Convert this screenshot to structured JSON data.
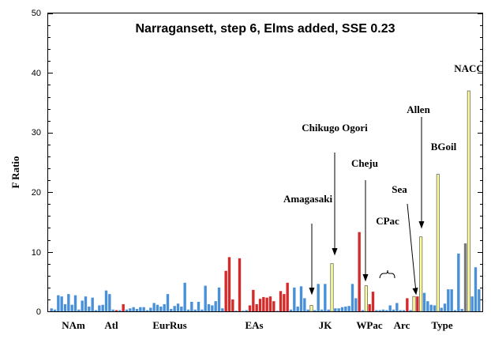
{
  "chart_data": {
    "type": "bar",
    "title": "Narragansett, step 6, Elms added, SSE 0.23",
    "ylabel": "F Ratio",
    "ylim": [
      0,
      50
    ],
    "yticks": [
      0,
      10,
      20,
      30,
      40,
      50
    ],
    "colors": {
      "blue": "#4a90d9",
      "red": "#d42a2a",
      "yellow": "#ffff99",
      "dark": "#7a7a7a"
    },
    "groups": [
      "NAm",
      "Atl",
      "EurRus",
      "EAs",
      "JK",
      "WPac",
      "Arc",
      "Type"
    ],
    "annotations": [
      "Amagasaki",
      "Chikugo Ogori",
      "Cheju",
      "CPac",
      "Sea",
      "Allen",
      "BGoil",
      "NACC"
    ],
    "series": [
      {
        "c": "blue",
        "v": 0.5
      },
      {
        "c": "blue",
        "v": 0.3
      },
      {
        "c": "blue",
        "v": 2.7
      },
      {
        "c": "blue",
        "v": 2.5
      },
      {
        "c": "blue",
        "v": 1.2
      },
      {
        "c": "blue",
        "v": 2.9
      },
      {
        "c": "blue",
        "v": 1.1
      },
      {
        "c": "blue",
        "v": 2.7
      },
      {
        "c": "blue",
        "v": 0.3
      },
      {
        "c": "blue",
        "v": 1.8
      },
      {
        "c": "blue",
        "v": 2.5
      },
      {
        "c": "blue",
        "v": 0.8
      },
      {
        "c": "blue",
        "v": 2.3
      },
      {
        "c": "blue",
        "v": 0.2
      },
      {
        "c": "blue",
        "v": 1.0
      },
      {
        "c": "blue",
        "v": 1.1
      },
      {
        "c": "blue",
        "v": 3.5
      },
      {
        "c": "blue",
        "v": 2.9
      },
      {
        "c": "blue",
        "v": 0.3
      },
      {
        "c": "red",
        "v": 0.2
      },
      {
        "c": "blue",
        "v": 0.2
      },
      {
        "c": "red",
        "v": 1.2
      },
      {
        "c": "blue",
        "v": 0.3
      },
      {
        "c": "blue",
        "v": 0.5
      },
      {
        "c": "blue",
        "v": 0.7
      },
      {
        "c": "blue",
        "v": 0.4
      },
      {
        "c": "blue",
        "v": 0.7
      },
      {
        "c": "blue",
        "v": 0.7
      },
      {
        "c": "blue",
        "v": 0.2
      },
      {
        "c": "blue",
        "v": 0.6
      },
      {
        "c": "blue",
        "v": 1.4
      },
      {
        "c": "blue",
        "v": 1.1
      },
      {
        "c": "blue",
        "v": 0.8
      },
      {
        "c": "blue",
        "v": 1.2
      },
      {
        "c": "blue",
        "v": 2.9
      },
      {
        "c": "blue",
        "v": 0.4
      },
      {
        "c": "blue",
        "v": 0.9
      },
      {
        "c": "blue",
        "v": 1.3
      },
      {
        "c": "blue",
        "v": 0.8
      },
      {
        "c": "blue",
        "v": 4.8
      },
      {
        "c": "blue",
        "v": 0.3
      },
      {
        "c": "blue",
        "v": 1.6
      },
      {
        "c": "blue",
        "v": 0.3
      },
      {
        "c": "blue",
        "v": 1.6
      },
      {
        "c": "blue",
        "v": 0.3
      },
      {
        "c": "blue",
        "v": 4.3
      },
      {
        "c": "blue",
        "v": 1.2
      },
      {
        "c": "blue",
        "v": 1.0
      },
      {
        "c": "blue",
        "v": 1.7
      },
      {
        "c": "blue",
        "v": 4.0
      },
      {
        "c": "blue",
        "v": 0.5
      },
      {
        "c": "red",
        "v": 6.8
      },
      {
        "c": "red",
        "v": 9.1
      },
      {
        "c": "red",
        "v": 2.0
      },
      {
        "c": "blue",
        "v": 0.1
      },
      {
        "c": "red",
        "v": 8.9
      },
      {
        "c": "blue",
        "v": 0.1
      },
      {
        "c": "blue",
        "v": 0.2
      },
      {
        "c": "red",
        "v": 1.0
      },
      {
        "c": "red",
        "v": 3.6
      },
      {
        "c": "red",
        "v": 1.2
      },
      {
        "c": "red",
        "v": 2.1
      },
      {
        "c": "red",
        "v": 2.4
      },
      {
        "c": "red",
        "v": 2.3
      },
      {
        "c": "red",
        "v": 2.5
      },
      {
        "c": "red",
        "v": 1.7
      },
      {
        "c": "blue",
        "v": 0.1
      },
      {
        "c": "red",
        "v": 3.4
      },
      {
        "c": "red",
        "v": 2.9
      },
      {
        "c": "red",
        "v": 4.8
      },
      {
        "c": "blue",
        "v": 0.3
      },
      {
        "c": "blue",
        "v": 4.0
      },
      {
        "c": "blue",
        "v": 0.8
      },
      {
        "c": "blue",
        "v": 4.2
      },
      {
        "c": "blue",
        "v": 2.2
      },
      {
        "c": "blue",
        "v": 0.3
      },
      {
        "c": "yellow",
        "v": 1.0
      },
      {
        "c": "blue",
        "v": 0.2
      },
      {
        "c": "blue",
        "v": 4.6
      },
      {
        "c": "blue",
        "v": 0.3
      },
      {
        "c": "blue",
        "v": 4.6
      },
      {
        "c": "blue",
        "v": 0.3
      },
      {
        "c": "yellow",
        "v": 8.0
      },
      {
        "c": "blue",
        "v": 0.5
      },
      {
        "c": "blue",
        "v": 0.5
      },
      {
        "c": "blue",
        "v": 0.7
      },
      {
        "c": "blue",
        "v": 0.8
      },
      {
        "c": "blue",
        "v": 0.9
      },
      {
        "c": "blue",
        "v": 4.6
      },
      {
        "c": "blue",
        "v": 2.2
      },
      {
        "c": "red",
        "v": 13.3
      },
      {
        "c": "blue",
        "v": 0.2
      },
      {
        "c": "yellow",
        "v": 4.3
      },
      {
        "c": "red",
        "v": 1.2
      },
      {
        "c": "red",
        "v": 3.3
      },
      {
        "c": "blue",
        "v": 0.2
      },
      {
        "c": "blue",
        "v": 0.2
      },
      {
        "c": "blue",
        "v": 0.3
      },
      {
        "c": "blue",
        "v": 0.2
      },
      {
        "c": "blue",
        "v": 1.0
      },
      {
        "c": "blue",
        "v": 0.3
      },
      {
        "c": "blue",
        "v": 1.4
      },
      {
        "c": "blue",
        "v": 0.2
      },
      {
        "c": "blue",
        "v": 0.2
      },
      {
        "c": "red",
        "v": 2.2
      },
      {
        "c": "blue",
        "v": 0.2
      },
      {
        "c": "yellow",
        "v": 2.5
      },
      {
        "c": "red",
        "v": 2.5
      },
      {
        "c": "yellow",
        "v": 12.5
      },
      {
        "c": "blue",
        "v": 3.1
      },
      {
        "c": "blue",
        "v": 1.7
      },
      {
        "c": "blue",
        "v": 1.1
      },
      {
        "c": "blue",
        "v": 1.0
      },
      {
        "c": "yellow",
        "v": 23.0
      },
      {
        "c": "blue",
        "v": 0.6
      },
      {
        "c": "blue",
        "v": 1.3
      },
      {
        "c": "blue",
        "v": 3.7
      },
      {
        "c": "blue",
        "v": 3.7
      },
      {
        "c": "blue",
        "v": 0.2
      },
      {
        "c": "blue",
        "v": 9.7
      },
      {
        "c": "blue",
        "v": 0.4
      },
      {
        "c": "dark",
        "v": 11.4
      },
      {
        "c": "yellow",
        "v": 37.0
      },
      {
        "c": "blue",
        "v": 2.5
      },
      {
        "c": "blue",
        "v": 7.4
      },
      {
        "c": "blue",
        "v": 3.7
      }
    ]
  }
}
